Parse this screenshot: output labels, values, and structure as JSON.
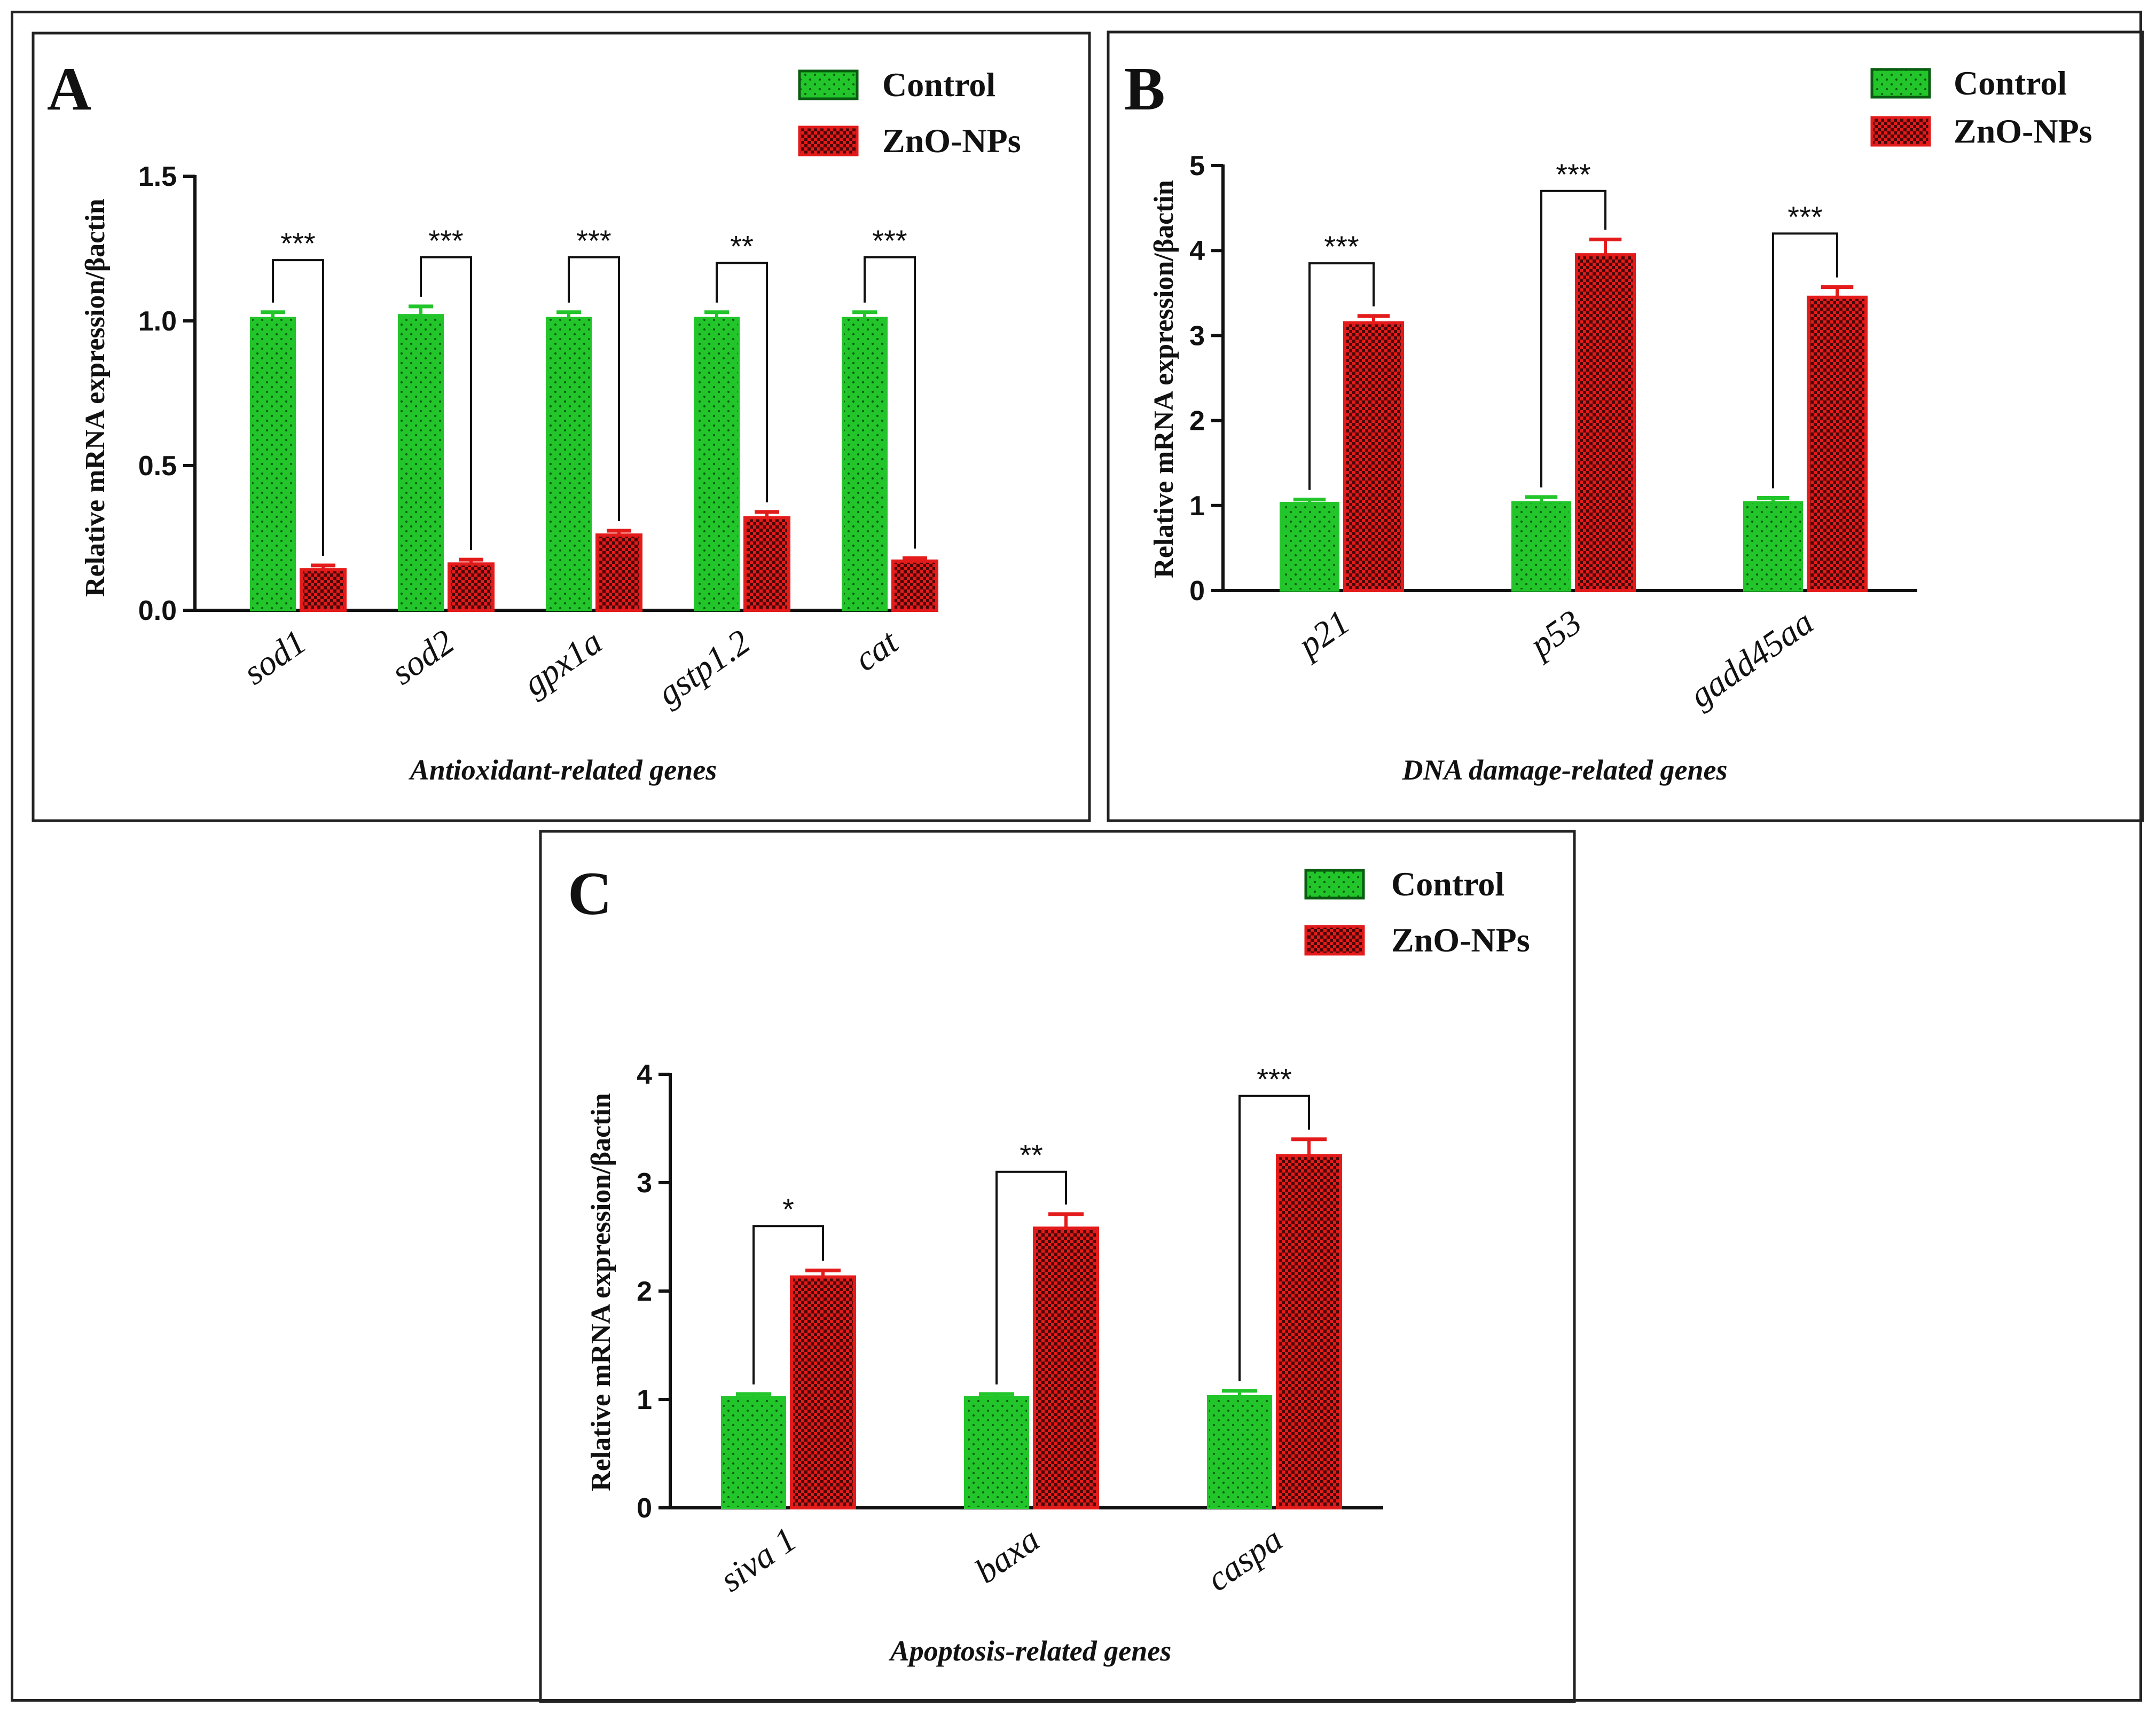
{
  "colors": {
    "control": "#22c52a",
    "control_dots": "#0a5c10",
    "zno": "#e31b1b",
    "zno_dark": "#4a0707",
    "axis": "#111111"
  },
  "legend": {
    "control_label": "Control",
    "zno_label": "ZnO-NPs"
  },
  "chart_data": [
    {
      "panel": "A",
      "type": "bar",
      "title": "",
      "ylabel": "Relative mRNA expression/βactin",
      "xlabel": "Antioxidant-related genes",
      "ylim": [
        0,
        1.5
      ],
      "yticks": [
        0,
        0.5,
        1.0,
        1.5
      ],
      "ytick_labels": [
        "0.0",
        "0.5",
        "1.0",
        "1.5"
      ],
      "categories": [
        "sod1",
        "sod2",
        "gpx1a",
        "gstp1.2",
        "cat"
      ],
      "series": [
        {
          "name": "Control",
          "values": [
            1.01,
            1.02,
            1.01,
            1.01,
            1.01
          ],
          "errors": [
            0.02,
            0.03,
            0.02,
            0.02,
            0.02
          ]
        },
        {
          "name": "ZnO-NPs",
          "values": [
            0.14,
            0.16,
            0.26,
            0.32,
            0.17
          ],
          "errors": [
            0.015,
            0.015,
            0.015,
            0.02,
            0.01
          ]
        }
      ],
      "significance": [
        "***",
        "***",
        "***",
        "**",
        "***"
      ],
      "bracket_heights": [
        1.21,
        1.22,
        1.22,
        1.2,
        1.22
      ]
    },
    {
      "panel": "B",
      "type": "bar",
      "title": "",
      "ylabel": "Relative mRNA expression/βactin",
      "xlabel": "DNA damage-related genes",
      "ylim": [
        0,
        5
      ],
      "yticks": [
        0,
        1,
        2,
        3,
        4,
        5
      ],
      "ytick_labels": [
        "0",
        "1",
        "2",
        "3",
        "4",
        "5"
      ],
      "categories": [
        "p21",
        "p53",
        "gadd45aa"
      ],
      "series": [
        {
          "name": "Control",
          "values": [
            1.03,
            1.04,
            1.04
          ],
          "errors": [
            0.04,
            0.06,
            0.05
          ]
        },
        {
          "name": "ZnO-NPs",
          "values": [
            3.15,
            3.95,
            3.45
          ],
          "errors": [
            0.08,
            0.18,
            0.12
          ]
        }
      ],
      "significance": [
        "***",
        "***",
        "***"
      ],
      "bracket_heights": [
        3.85,
        4.7,
        4.2
      ]
    },
    {
      "panel": "C",
      "type": "bar",
      "title": "",
      "ylabel": "Relative mRNA expression/βactin",
      "xlabel": "Apoptosis-related genes",
      "ylim": [
        0,
        4
      ],
      "yticks": [
        0,
        1,
        2,
        3,
        4
      ],
      "ytick_labels": [
        "0",
        "1",
        "2",
        "3",
        "4"
      ],
      "categories": [
        "siva 1",
        "baxa",
        "caspa"
      ],
      "series": [
        {
          "name": "Control",
          "values": [
            1.02,
            1.02,
            1.03
          ],
          "errors": [
            0.03,
            0.03,
            0.05
          ]
        },
        {
          "name": "ZnO-NPs",
          "values": [
            2.13,
            2.58,
            3.25
          ],
          "errors": [
            0.06,
            0.13,
            0.15
          ]
        }
      ],
      "significance": [
        "*",
        "**",
        "***"
      ],
      "bracket_heights": [
        2.6,
        3.1,
        3.8
      ]
    }
  ]
}
